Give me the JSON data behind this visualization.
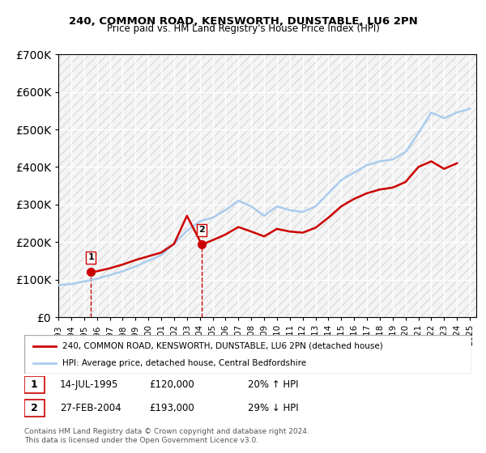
{
  "title1": "240, COMMON ROAD, KENSWORTH, DUNSTABLE, LU6 2PN",
  "title2": "Price paid vs. HM Land Registry's House Price Index (HPI)",
  "legend_label_red": "240, COMMON ROAD, KENSWORTH, DUNSTABLE, LU6 2PN (detached house)",
  "legend_label_blue": "HPI: Average price, detached house, Central Bedfordshire",
  "footnote": "Contains HM Land Registry data © Crown copyright and database right 2024.\nThis data is licensed under the Open Government Licence v3.0.",
  "table": [
    {
      "num": "1",
      "date": "14-JUL-1995",
      "price": "£120,000",
      "hpi": "20% ↑ HPI"
    },
    {
      "num": "2",
      "date": "27-FEB-2004",
      "price": "£193,000",
      "hpi": "29% ↓ HPI"
    }
  ],
  "sale1": {
    "year": 1995.54,
    "price": 120000
  },
  "sale2": {
    "year": 2004.16,
    "price": 193000
  },
  "ylim": [
    0,
    700000
  ],
  "yticks": [
    0,
    100000,
    200000,
    300000,
    400000,
    500000,
    600000,
    700000
  ],
  "red_color": "#cc0000",
  "blue_color": "#aaccee",
  "dashed_color": "#cc0000",
  "sale_marker_color": "#cc0000",
  "bg_hatch_color": "#e8e8e8",
  "hpi_line": [
    [
      1993,
      85000
    ],
    [
      1994,
      88000
    ],
    [
      1995,
      95000
    ],
    [
      1996,
      102000
    ],
    [
      1997,
      112000
    ],
    [
      1998,
      122000
    ],
    [
      1999,
      135000
    ],
    [
      2000,
      150000
    ],
    [
      2001,
      165000
    ],
    [
      2002,
      195000
    ],
    [
      2003,
      230000
    ],
    [
      2004,
      255000
    ],
    [
      2005,
      265000
    ],
    [
      2006,
      285000
    ],
    [
      2007,
      310000
    ],
    [
      2008,
      295000
    ],
    [
      2009,
      270000
    ],
    [
      2010,
      295000
    ],
    [
      2011,
      285000
    ],
    [
      2012,
      280000
    ],
    [
      2013,
      295000
    ],
    [
      2014,
      330000
    ],
    [
      2015,
      365000
    ],
    [
      2016,
      385000
    ],
    [
      2017,
      405000
    ],
    [
      2018,
      415000
    ],
    [
      2019,
      420000
    ],
    [
      2020,
      440000
    ],
    [
      2021,
      490000
    ],
    [
      2022,
      545000
    ],
    [
      2023,
      530000
    ],
    [
      2024,
      545000
    ],
    [
      2025,
      555000
    ]
  ],
  "price_line": [
    [
      1995.54,
      120000
    ],
    [
      1996,
      122000
    ],
    [
      1997,
      130000
    ],
    [
      1998,
      140000
    ],
    [
      1999,
      152000
    ],
    [
      2000,
      162000
    ],
    [
      2001,
      172000
    ],
    [
      2002,
      195000
    ],
    [
      2003,
      270000
    ],
    [
      2004.16,
      193000
    ],
    [
      2005,
      205000
    ],
    [
      2006,
      220000
    ],
    [
      2007,
      240000
    ],
    [
      2008,
      228000
    ],
    [
      2009,
      215000
    ],
    [
      2010,
      235000
    ],
    [
      2011,
      228000
    ],
    [
      2012,
      225000
    ],
    [
      2013,
      238000
    ],
    [
      2014,
      265000
    ],
    [
      2015,
      295000
    ],
    [
      2016,
      315000
    ],
    [
      2017,
      330000
    ],
    [
      2018,
      340000
    ],
    [
      2019,
      345000
    ],
    [
      2020,
      360000
    ],
    [
      2021,
      400000
    ],
    [
      2022,
      415000
    ],
    [
      2023,
      395000
    ],
    [
      2024,
      410000
    ]
  ]
}
